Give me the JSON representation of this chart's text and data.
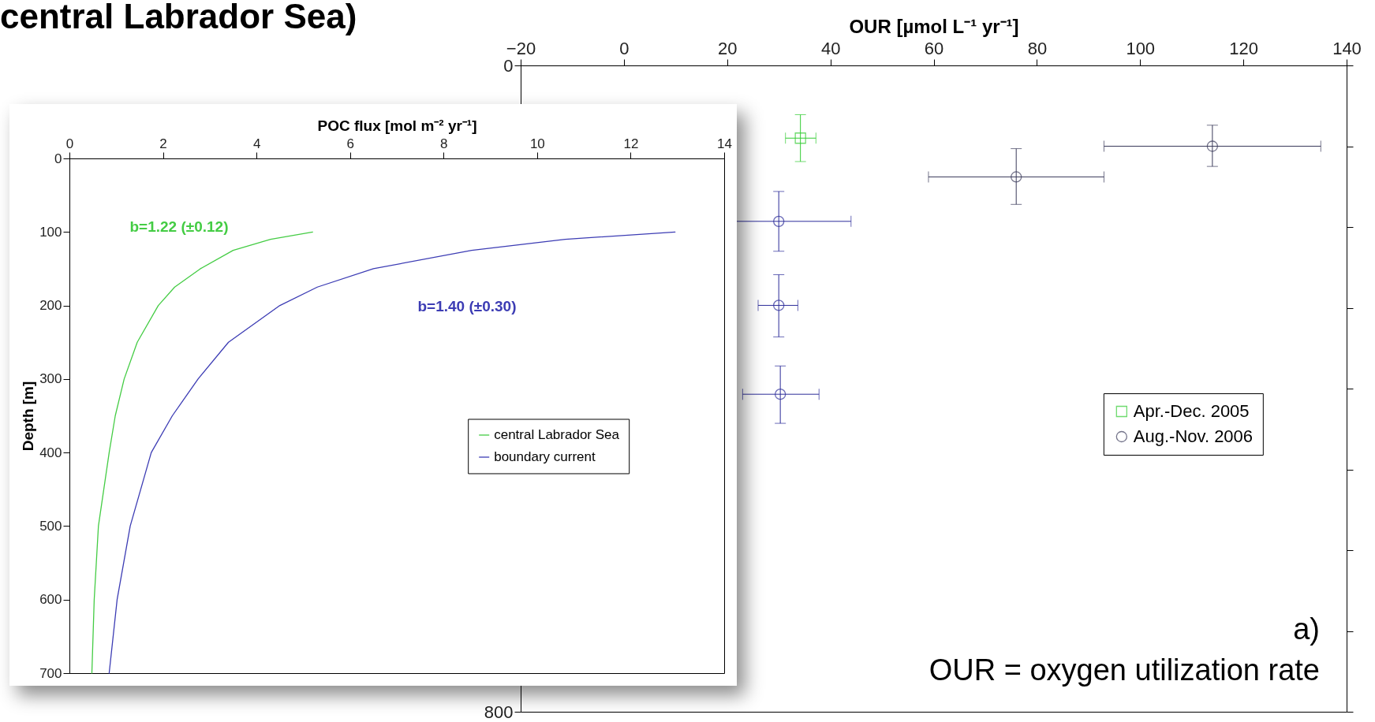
{
  "chart_data": [
    {
      "type": "scatter",
      "title": "central Labrador Sea)",
      "xlabel": "OUR [µmol L⁻¹ yr⁻¹]",
      "xlim": [
        -20,
        140
      ],
      "xticks": [
        {
          "value": -20,
          "label": "−20"
        },
        0,
        20,
        40,
        60,
        80,
        100,
        120,
        140
      ],
      "ylim": [
        800,
        0
      ],
      "yticks": [
        0,
        {
          "value": 100,
          "label": null
        },
        {
          "value": 200,
          "label": null
        },
        {
          "value": 300,
          "label": null
        },
        {
          "value": 400,
          "label": null
        },
        {
          "value": 500,
          "label": null
        },
        {
          "value": 600,
          "label": null
        },
        {
          "value": 700,
          "label": null
        },
        800
      ],
      "legend": "right",
      "series": [
        {
          "name": "Apr.-Dec. 2005",
          "marker": "square",
          "colors": [
            "#33cc33"
          ],
          "x": [
            34.2
          ],
          "values": [
            90
          ],
          "errors": [
            [
              61,
              119
            ]
          ],
          "xerrors": [
            [
              31.3,
              37.2
            ]
          ]
        },
        {
          "name": "Aug.-Nov. 2006",
          "marker": "circle",
          "colors": [
            "#3a3a5a",
            "#3a3a5a",
            "#2b2b99",
            "#2b2b99",
            "#2b2b99"
          ],
          "x": [
            114,
            76,
            30,
            30,
            30.3
          ],
          "values": [
            100,
            138,
            193,
            297,
            407
          ],
          "errors": [
            [
              74,
              125
            ],
            [
              103,
              172
            ],
            [
              156,
              230
            ],
            [
              259,
              336
            ],
            [
              372,
              443
            ]
          ],
          "xerrors": [
            [
              93,
              135
            ],
            [
              59,
              93
            ],
            14,
            [
              26,
              33.7
            ],
            [
              23,
              37.8
            ]
          ]
        }
      ],
      "annotations": [
        "a)",
        "OUR = oxygen utilization rate"
      ]
    },
    {
      "type": "line",
      "xlabel": "POC flux [mol m⁻² yr⁻¹]",
      "ylabel": "Depth [m]",
      "xlim": [
        0,
        14
      ],
      "xticks": [
        0,
        2,
        4,
        6,
        8,
        10,
        12,
        14
      ],
      "ylim": [
        700,
        0
      ],
      "yticks": [
        0,
        100,
        200,
        300,
        400,
        500,
        600,
        700
      ],
      "legend": "right",
      "series": [
        {
          "name": "central Labrador Sea",
          "color": "#44cc44",
          "x": [
            5.2,
            4.3,
            3.5,
            2.8,
            2.25,
            1.9,
            1.45,
            1.17,
            0.98,
            0.85,
            0.62,
            0.53,
            0.48
          ],
          "values": [
            100,
            110,
            125,
            150,
            175,
            200,
            250,
            300,
            350,
            400,
            500,
            600,
            700
          ]
        },
        {
          "name": "boundary current",
          "color": "#3c3cb4",
          "x": [
            12.95,
            10.6,
            8.6,
            6.5,
            5.3,
            4.5,
            3.4,
            2.75,
            2.2,
            1.75,
            1.3,
            1.02,
            0.85
          ],
          "values": [
            100,
            110,
            125,
            150,
            175,
            200,
            250,
            300,
            350,
            400,
            500,
            600,
            700
          ]
        }
      ],
      "annotations": [
        "b=1.22 (±0.12)",
        "b=1.40 (±0.30)"
      ]
    }
  ]
}
